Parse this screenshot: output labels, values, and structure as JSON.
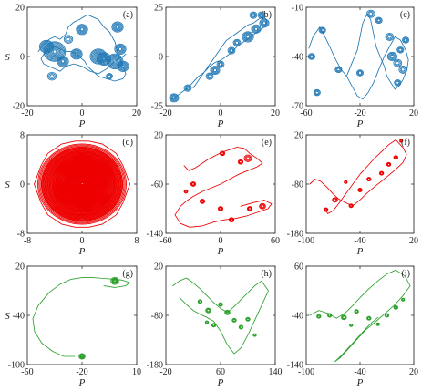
{
  "figure": {
    "panels": [
      {
        "label": "(a)",
        "xticks": [
          "-20",
          "0",
          "20"
        ],
        "yticks": [
          "20",
          "0",
          "-20"
        ],
        "xlabel": "P",
        "ylabel": "S"
      },
      {
        "label": "(b)",
        "xticks": [
          "-20",
          "0",
          "20"
        ],
        "yticks": [
          "25",
          "0",
          "-25"
        ],
        "xlabel": "P",
        "ylabel": ""
      },
      {
        "label": "(c)",
        "xticks": [
          "-60",
          "-20",
          "20"
        ],
        "yticks": [
          "-10",
          "-40",
          "-70"
        ],
        "xlabel": "P",
        "ylabel": ""
      },
      {
        "label": "(d)",
        "xticks": [
          "-8",
          "0",
          "8"
        ],
        "yticks": [
          "8",
          "0",
          "-8"
        ],
        "xlabel": "P",
        "ylabel": "S"
      },
      {
        "label": "(e)",
        "xticks": [
          "-60",
          "0",
          "60"
        ],
        "yticks": [
          "20",
          "-60",
          "-140"
        ],
        "xlabel": "P",
        "ylabel": ""
      },
      {
        "label": "(f)",
        "xticks": [
          "-100",
          "-40",
          "20"
        ],
        "yticks": [
          "20",
          "-80",
          "-180"
        ],
        "xlabel": "P",
        "ylabel": ""
      },
      {
        "label": "(g)",
        "xticks": [
          "-50",
          "-20",
          "10"
        ],
        "yticks": [
          "20",
          "-40",
          "-100"
        ],
        "xlabel": "P",
        "ylabel": "S"
      },
      {
        "label": "(h)",
        "xticks": [
          "-20",
          "60",
          "140"
        ],
        "yticks": [
          "20",
          "-80",
          "-180"
        ],
        "xlabel": "P",
        "ylabel": ""
      },
      {
        "label": "(i)",
        "xticks": [
          "-100",
          "-40",
          "20"
        ],
        "yticks": [
          "60",
          "-40",
          "-140"
        ],
        "xlabel": "P",
        "ylabel": ""
      }
    ]
  },
  "chart_data": [
    {
      "type": "line",
      "panel": "(a)",
      "color": "#1f77b4",
      "xlim": [
        -20,
        20
      ],
      "ylim": [
        -20,
        20
      ],
      "x": [
        -16,
        -14,
        -12,
        -10,
        -8,
        -6,
        -5,
        -3,
        -1,
        2,
        4,
        6,
        8,
        10,
        12,
        13,
        14,
        15,
        16,
        15,
        12,
        9,
        6,
        4,
        2,
        1,
        0,
        -2,
        -4,
        -6,
        -8,
        -10,
        -12,
        -14,
        -15,
        -14,
        -10,
        -8,
        -6,
        -3,
        0,
        3,
        6,
        9,
        11,
        13,
        15,
        16
      ],
      "y": [
        2,
        5,
        7,
        8,
        7,
        9,
        12,
        14,
        15,
        17,
        16,
        15,
        12,
        10,
        6,
        2,
        -1,
        -4,
        -7,
        -9,
        -10,
        -9,
        -8,
        -6,
        -4,
        -2,
        -1,
        1,
        2,
        2,
        3,
        4,
        3,
        1,
        -1,
        -3,
        -5,
        -6,
        -4,
        -3,
        -4,
        -6,
        -7,
        -5,
        -3,
        -1,
        0,
        1
      ],
      "loops": [
        [
          -10,
          2,
          4
        ],
        [
          -13,
          4,
          2.5
        ],
        [
          -7,
          -2,
          2
        ],
        [
          -2,
          1,
          2
        ],
        [
          6,
          0,
          3
        ],
        [
          8,
          -1,
          2.5
        ],
        [
          12,
          -2,
          3
        ],
        [
          14,
          3,
          2
        ],
        [
          15,
          -4,
          2
        ],
        [
          13,
          12,
          2
        ],
        [
          0,
          11,
          2
        ],
        [
          -11,
          -8,
          1.5
        ],
        [
          10,
          -8,
          1
        ],
        [
          -5,
          7,
          1.5
        ]
      ]
    },
    {
      "type": "line",
      "panel": "(b)",
      "color": "#1f77b4",
      "xlim": [
        -20,
        20
      ],
      "ylim": [
        -25,
        25
      ],
      "x": [
        -18,
        -16,
        -14,
        -12,
        -10,
        -8,
        -6,
        -4,
        -2,
        0,
        2,
        4,
        6,
        8,
        10,
        12,
        14,
        16,
        17,
        16,
        14,
        12,
        10,
        8,
        6,
        4,
        2,
        0,
        -2,
        -4,
        -6,
        -8,
        -10
      ],
      "y": [
        -22,
        -20,
        -18,
        -16,
        -13,
        -10,
        -8,
        -5,
        -3,
        -2,
        0,
        2,
        5,
        7,
        9,
        11,
        13,
        15,
        18,
        20,
        19,
        17,
        16,
        14,
        12,
        10,
        8,
        4,
        0,
        -4,
        -8,
        -12,
        -16
      ],
      "loops": [
        [
          -17,
          -21,
          2
        ],
        [
          -12,
          -16,
          1.5
        ],
        [
          -4,
          -10,
          1.5
        ],
        [
          -2,
          -7,
          2
        ],
        [
          0,
          -4,
          1.5
        ],
        [
          4,
          3,
          1.5
        ],
        [
          6,
          7,
          1.5
        ],
        [
          10,
          10,
          2.5
        ],
        [
          13,
          14,
          2
        ],
        [
          16,
          17,
          2
        ],
        [
          15,
          21,
          1.5
        ],
        [
          12,
          21,
          1.5
        ]
      ]
    },
    {
      "type": "line",
      "panel": "(c)",
      "color": "#1f77b4",
      "xlim": [
        -60,
        20
      ],
      "ylim": [
        -70,
        -10
      ],
      "x": [
        -58,
        -55,
        -50,
        -46,
        -42,
        -38,
        -34,
        -30,
        -26,
        -22,
        -20,
        -18,
        -16,
        -14,
        -12,
        -10,
        -8,
        -5,
        -2,
        0,
        3,
        6,
        9,
        12,
        15,
        16,
        14,
        10,
        6,
        2,
        -2,
        -6,
        -10,
        -14,
        -18,
        -22,
        -26,
        -30
      ],
      "y": [
        -35,
        -28,
        -22,
        -28,
        -35,
        -42,
        -48,
        -52,
        -44,
        -36,
        -28,
        -20,
        -16,
        -14,
        -18,
        -26,
        -34,
        -40,
        -46,
        -52,
        -56,
        -60,
        -58,
        -54,
        -48,
        -42,
        -36,
        -30,
        -28,
        -34,
        -40,
        -48,
        -56,
        -62,
        -66,
        -64,
        -58,
        -52
      ],
      "loops": [
        [
          -56,
          -40,
          2
        ],
        [
          -48,
          -24,
          2
        ],
        [
          -36,
          -48,
          2
        ],
        [
          -12,
          -14,
          2.5
        ],
        [
          -6,
          -18,
          2
        ],
        [
          2,
          -28,
          2.5
        ],
        [
          4,
          -40,
          3
        ],
        [
          8,
          -44,
          2.5
        ],
        [
          10,
          -36,
          2
        ],
        [
          12,
          -48,
          2.5
        ],
        [
          8,
          -56,
          2
        ],
        [
          -20,
          -50,
          2
        ],
        [
          14,
          -30,
          2
        ],
        [
          -52,
          -62,
          2
        ]
      ]
    },
    {
      "type": "line",
      "panel": "(d)",
      "color": "#ee0000",
      "xlim": [
        -8,
        8
      ],
      "ylim": [
        -8,
        8
      ],
      "x": [
        -7,
        -6,
        -5,
        -3,
        -1,
        1,
        3,
        5,
        6,
        7,
        6,
        5,
        3,
        1,
        -1,
        -3,
        -5,
        -6,
        -7
      ],
      "y": [
        0,
        3,
        5,
        6.5,
        7,
        7,
        6.5,
        5,
        3,
        0,
        -3,
        -5,
        -6.5,
        -7,
        -7,
        -6.5,
        -5,
        -3,
        0
      ],
      "loops": [
        [
          0,
          0,
          6.8
        ],
        [
          0,
          0,
          6.2
        ],
        [
          0,
          0,
          5.5
        ],
        [
          0.2,
          0.1,
          4.8
        ],
        [
          0,
          0.2,
          4
        ],
        [
          0.2,
          0,
          3.2
        ],
        [
          0,
          0,
          2.4
        ]
      ]
    },
    {
      "type": "line",
      "panel": "(e)",
      "color": "#ee0000",
      "xlim": [
        -60,
        60
      ],
      "ylim": [
        -140,
        20
      ],
      "x": [
        -40,
        -35,
        -28,
        -20,
        -14,
        -6,
        2,
        10,
        18,
        26,
        32,
        40,
        46,
        40,
        30,
        20,
        10,
        0,
        -10,
        -20,
        -30,
        -38,
        -44,
        -50,
        -44,
        -34,
        -20,
        -8,
        4,
        16,
        28,
        40,
        52,
        56,
        48,
        36,
        22
      ],
      "y": [
        -30,
        -38,
        -34,
        -26,
        -20,
        -14,
        -8,
        -4,
        0,
        -2,
        -10,
        -18,
        -26,
        -32,
        -38,
        -44,
        -52,
        -60,
        -66,
        -72,
        -80,
        -88,
        -96,
        -110,
        -124,
        -130,
        -128,
        -122,
        -118,
        -116,
        -112,
        -106,
        -100,
        -92,
        -86,
        -90,
        -96
      ],
      "loops": [
        [
          2,
          -10,
          3
        ],
        [
          22,
          -24,
          3
        ],
        [
          30,
          -18,
          5
        ],
        [
          -30,
          -60,
          3
        ],
        [
          -20,
          -88,
          3
        ],
        [
          0,
          -100,
          3
        ],
        [
          12,
          -118,
          3
        ],
        [
          32,
          -100,
          3
        ],
        [
          46,
          -96,
          4
        ],
        [
          -38,
          -72,
          2
        ]
      ]
    },
    {
      "type": "line",
      "panel": "(f)",
      "color": "#ee0000",
      "xlim": [
        -100,
        20
      ],
      "ylim": [
        -180,
        20
      ],
      "x": [
        -96,
        -90,
        -84,
        -76,
        -70,
        -64,
        -56,
        -48,
        -40,
        -32,
        -24,
        -16,
        -8,
        0,
        8,
        12,
        8,
        0,
        -8,
        -16,
        -24,
        -32,
        -40,
        -48,
        -56,
        -64,
        -70,
        -76,
        -80
      ],
      "y": [
        -80,
        -70,
        -74,
        -88,
        -100,
        -110,
        -118,
        -124,
        -112,
        -98,
        -86,
        -74,
        -62,
        -50,
        -36,
        -20,
        -6,
        10,
        0,
        -14,
        -28,
        -44,
        -60,
        -80,
        -100,
        -120,
        -134,
        -140,
        -128
      ],
      "loops": [
        [
          -68,
          -112,
          4
        ],
        [
          -50,
          -124,
          3
        ],
        [
          -40,
          -92,
          3
        ],
        [
          -30,
          -70,
          3
        ],
        [
          -16,
          -58,
          3
        ],
        [
          -8,
          -40,
          3
        ],
        [
          0,
          -26,
          3
        ],
        [
          -78,
          -132,
          3
        ],
        [
          6,
          8,
          2
        ],
        [
          -56,
          -76,
          2
        ]
      ]
    },
    {
      "type": "line",
      "panel": "(g)",
      "color": "#2ca02c",
      "xlim": [
        -50,
        10
      ],
      "ylim": [
        -100,
        20
      ],
      "x": [
        -24,
        -30,
        -36,
        -42,
        -46,
        -47,
        -44,
        -38,
        -32,
        -26,
        -20,
        -14,
        -8,
        -2,
        2,
        6,
        4,
        -2,
        -8
      ],
      "y": [
        -90,
        -90,
        -84,
        -74,
        -60,
        -44,
        -28,
        -12,
        -2,
        4,
        6,
        6,
        5,
        4,
        3,
        0,
        -4,
        -6,
        -4
      ],
      "loops": [
        [
          -2,
          2,
          4
        ],
        [
          -2,
          2,
          2.8
        ],
        [
          -2,
          2,
          1.8
        ],
        [
          -20,
          -90,
          3
        ],
        [
          -20,
          -90,
          2
        ],
        [
          -20,
          -90,
          1
        ]
      ]
    },
    {
      "type": "line",
      "panel": "(h)",
      "color": "#2ca02c",
      "xlim": [
        -20,
        140
      ],
      "ylim": [
        -180,
        20
      ],
      "x": [
        -10,
        0,
        10,
        20,
        30,
        40,
        50,
        60,
        70,
        80,
        90,
        100,
        110,
        120,
        130,
        120,
        110,
        100,
        90,
        80,
        70,
        60,
        50,
        40,
        30,
        20,
        10,
        0
      ],
      "y": [
        -20,
        -10,
        -4,
        -14,
        -26,
        -40,
        -54,
        -66,
        -74,
        -62,
        -48,
        -34,
        -20,
        -10,
        -30,
        -60,
        -90,
        -120,
        -146,
        -158,
        -140,
        -112,
        -92,
        -84,
        -78,
        -70,
        -58,
        -44
      ],
      "loops": [
        [
          30,
          -52,
          3
        ],
        [
          42,
          -70,
          4
        ],
        [
          60,
          -58,
          3
        ],
        [
          70,
          -74,
          4
        ],
        [
          80,
          -90,
          3
        ],
        [
          90,
          -104,
          3
        ],
        [
          50,
          -100,
          3
        ],
        [
          100,
          -88,
          3
        ],
        [
          40,
          -94,
          2
        ],
        [
          110,
          -120,
          2
        ]
      ]
    },
    {
      "type": "line",
      "panel": "(i)",
      "color": "#2ca02c",
      "xlim": [
        -100,
        20
      ],
      "ylim": [
        -140,
        60
      ],
      "x": [
        -96,
        -86,
        -76,
        -66,
        -56,
        -48,
        -40,
        -30,
        -20,
        -10,
        0,
        10,
        16,
        8,
        -2,
        -12,
        -22,
        -34,
        -44,
        -54,
        -62,
        -68,
        -60,
        -50,
        -40,
        -30,
        -20
      ],
      "y": [
        -40,
        -30,
        -36,
        -46,
        -34,
        -20,
        -4,
        14,
        30,
        44,
        52,
        40,
        20,
        0,
        -20,
        -36,
        -52,
        -70,
        -90,
        -110,
        -126,
        -134,
        -120,
        -100,
        -80,
        -60,
        -44
      ],
      "loops": [
        [
          -86,
          -42,
          3
        ],
        [
          -74,
          -40,
          3
        ],
        [
          -58,
          -44,
          4
        ],
        [
          -44,
          -32,
          3
        ],
        [
          -30,
          -46,
          3
        ],
        [
          -10,
          -40,
          3
        ],
        [
          0,
          -24,
          3
        ],
        [
          -50,
          -60,
          2
        ],
        [
          -20,
          -58,
          2
        ],
        [
          8,
          -8,
          2
        ]
      ]
    }
  ]
}
